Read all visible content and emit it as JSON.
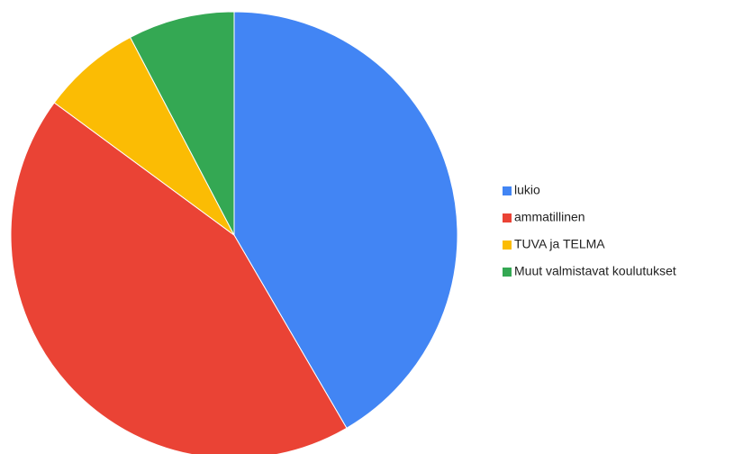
{
  "chart_data": {
    "type": "pie",
    "categories": [
      "lukio",
      "ammatillinen",
      "TUVA ja TELMA",
      "Muut valmistavat koulutukset"
    ],
    "values": [
      41.6,
      43.5,
      7.2,
      7.7
    ],
    "colors": [
      "#4285f4",
      "#ea4335",
      "#fbbc04",
      "#34a853"
    ],
    "legend": "right"
  }
}
